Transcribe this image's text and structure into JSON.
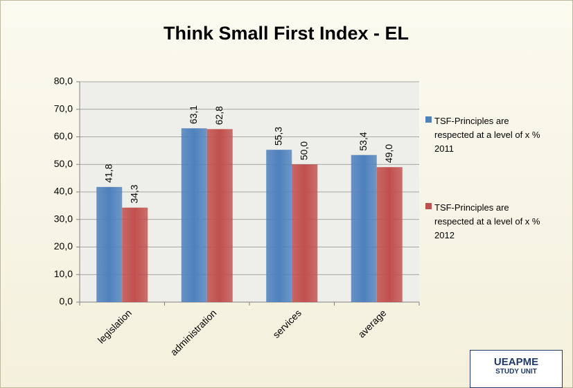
{
  "chart_data": {
    "type": "bar",
    "title": "Think Small First Index - EL",
    "categories": [
      "legislation",
      "administration",
      "services",
      "average"
    ],
    "series": [
      {
        "name": "TSF-Principles are respected at a level of x % 2011",
        "color": "#4f81bd",
        "values": [
          41.8,
          63.1,
          55.3,
          53.4
        ],
        "value_labels": [
          "41,8",
          "63,1",
          "55,3",
          "53,4"
        ]
      },
      {
        "name": "TSF-Principles are respected at a level of x % 2012",
        "color": "#c0504d",
        "values": [
          34.3,
          62.8,
          50.0,
          49.0
        ],
        "value_labels": [
          "34,3",
          "62,8",
          "50,0",
          "49,0"
        ]
      }
    ],
    "ylim": [
      0,
      80
    ],
    "yticks": [
      {
        "value": 0,
        "label": "0,0"
      },
      {
        "value": 10,
        "label": "10,0"
      },
      {
        "value": 20,
        "label": "20,0"
      },
      {
        "value": 30,
        "label": "30,0"
      },
      {
        "value": 40,
        "label": "40,0"
      },
      {
        "value": 50,
        "label": "50,0"
      },
      {
        "value": 60,
        "label": "60,0"
      },
      {
        "value": 70,
        "label": "70,0"
      },
      {
        "value": 80,
        "label": "80,0"
      }
    ],
    "grid": true,
    "legend": "right"
  },
  "badge": {
    "org": "UEAPME",
    "unit": "STUDY UNIT"
  }
}
